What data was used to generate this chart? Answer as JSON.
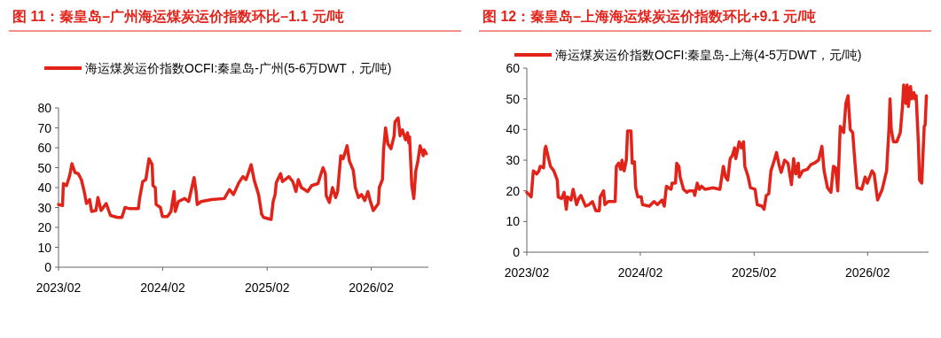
{
  "chart_data": [
    {
      "type": "line",
      "title": "图 11：秦皇岛–广州海运煤炭运价指数环比–1.1 元/吨",
      "legend": "top",
      "x": [
        "2023-02-01",
        "2023-02-15",
        "2023-02-18",
        "2023-03-01",
        "2023-03-12",
        "2023-03-20",
        "2023-03-31",
        "2023-04-11",
        "2023-04-22",
        "2023-05-02",
        "2023-05-10",
        "2023-05-21",
        "2023-05-28",
        "2023-06-12",
        "2023-06-19",
        "2023-06-30",
        "2023-07-18",
        "2023-08-02",
        "2023-08-27",
        "2023-09-11",
        "2023-09-22",
        "2023-10-06",
        "2023-11-08",
        "2023-11-12",
        "2023-11-23",
        "2023-12-04",
        "2023-12-15",
        "2023-12-26",
        "2023-12-29",
        "2024-01-06",
        "2024-01-09",
        "2024-01-24",
        "2024-01-31",
        "2024-02-18",
        "2024-03-01",
        "2024-03-12",
        "2024-03-16",
        "2024-03-27",
        "2024-04-18",
        "2024-05-02",
        "2024-05-21",
        "2024-05-28",
        "2024-06-01",
        "2024-06-15",
        "2024-07-22",
        "2024-09-04",
        "2024-09-22",
        "2024-10-06",
        "2024-10-25",
        "2024-11-08",
        "2024-11-19",
        "2024-11-30",
        "2024-12-07",
        "2024-12-18",
        "2025-01-02",
        "2025-01-13",
        "2025-01-20",
        "2025-02-15",
        "2025-02-22",
        "2025-03-01",
        "2025-03-05",
        "2025-03-20",
        "2025-03-27",
        "2025-04-18",
        "2025-05-02",
        "2025-05-13",
        "2025-05-21",
        "2025-06-01",
        "2025-06-23",
        "2025-07-07",
        "2025-07-29",
        "2025-08-09",
        "2025-08-16",
        "2025-08-24",
        "2025-08-27",
        "2025-09-07",
        "2025-09-18",
        "2025-09-29",
        "2025-10-06",
        "2025-10-17",
        "2025-10-25",
        "2025-11-01",
        "2025-11-08",
        "2025-11-16",
        "2025-11-30",
        "2025-12-07",
        "2025-12-18",
        "2025-12-29",
        "2026-01-09",
        "2026-01-20",
        "2026-01-28",
        "2026-02-08",
        "2026-02-26",
        "2026-03-01",
        "2026-03-12",
        "2026-03-16",
        "2026-03-23",
        "2026-03-31",
        "2026-04-11",
        "2026-04-22",
        "2026-04-25",
        "2026-05-06",
        "2026-05-13",
        "2026-05-21",
        "2026-06-01",
        "2026-06-08",
        "2026-06-12",
        "2026-06-15",
        "2026-06-23",
        "2026-06-30",
        "2026-07-07",
        "2026-07-14",
        "2026-07-22",
        "2026-08-02",
        "2026-08-05",
        "2026-08-13"
      ],
      "series": [
        {
          "name": "海运煤炭运价指数OCFI:秦皇岛-广州(5-6万DWT，元/吨)",
          "color": "#e2231a",
          "values": [
            31.5,
            31,
            42,
            41,
            46,
            52,
            47.5,
            47,
            44,
            38,
            32,
            34,
            28,
            28.5,
            35,
            28.5,
            32,
            26,
            25,
            25,
            30,
            29.5,
            29.5,
            34.5,
            43,
            44,
            54.5,
            51.5,
            41,
            40,
            31.5,
            30,
            25.5,
            25.5,
            28,
            38,
            28,
            33,
            34.5,
            33,
            45,
            38,
            31.5,
            33,
            34,
            34.5,
            39,
            36.5,
            42.5,
            45.5,
            44,
            48.5,
            51.5,
            43.5,
            36.5,
            26.5,
            25,
            24,
            33,
            36.5,
            42.5,
            47,
            43,
            45.5,
            43,
            38,
            44,
            40,
            38,
            41,
            42,
            47,
            50,
            47,
            36,
            32.5,
            40,
            35,
            38,
            56,
            54.5,
            57.5,
            61,
            53.5,
            48.5,
            40,
            35,
            36.5,
            33.5,
            38,
            33.5,
            28.5,
            32,
            40,
            44,
            59,
            70,
            62,
            59.5,
            66,
            73,
            75,
            66,
            69,
            64,
            67.5,
            62.5,
            65.5,
            41,
            34.5,
            48.5,
            53,
            61,
            56,
            59,
            57
          ]
        }
      ],
      "xlim": [
        "2023-02-01",
        "2026-08-20"
      ],
      "ylim": [
        0,
        80
      ],
      "xticks": [
        {
          "value": "2023-02",
          "label": "2023/02"
        },
        {
          "value": "2024-02",
          "label": "2024/02"
        },
        {
          "value": "2025-02",
          "label": "2025/02"
        },
        {
          "value": "2026-02",
          "label": "2026/02"
        }
      ],
      "yticks": [
        0,
        10,
        20,
        30,
        40,
        50,
        60,
        70,
        80
      ]
    },
    {
      "type": "line",
      "title": "图 12：秦皇岛–上海海运煤炭运价指数环比+9.1 元/吨",
      "legend": "top",
      "x": [
        "2023-02-01",
        "2023-02-15",
        "2023-02-22",
        "2023-03-05",
        "2023-03-12",
        "2023-03-16",
        "2023-03-27",
        "2023-03-31",
        "2023-04-03",
        "2023-04-11",
        "2023-04-18",
        "2023-04-29",
        "2023-05-10",
        "2023-05-13",
        "2023-05-24",
        "2023-06-01",
        "2023-06-08",
        "2023-06-12",
        "2023-06-23",
        "2023-06-30",
        "2023-07-11",
        "2023-07-18",
        "2023-07-25",
        "2023-08-09",
        "2023-08-20",
        "2023-08-31",
        "2023-09-11",
        "2023-09-22",
        "2023-09-25",
        "2023-10-06",
        "2023-10-10",
        "2023-10-21",
        "2023-11-12",
        "2023-11-16",
        "2023-11-23",
        "2023-11-30",
        "2023-12-04",
        "2023-12-11",
        "2023-12-18",
        "2023-12-22",
        "2024-01-02",
        "2024-01-06",
        "2024-01-13",
        "2024-01-17",
        "2024-01-24",
        "2024-02-04",
        "2024-02-08",
        "2024-03-01",
        "2024-03-16",
        "2024-03-27",
        "2024-04-11",
        "2024-04-18",
        "2024-04-25",
        "2024-05-02",
        "2024-05-10",
        "2024-05-13",
        "2024-05-24",
        "2024-05-28",
        "2024-06-04",
        "2024-06-08",
        "2024-06-19",
        "2024-06-30",
        "2024-07-07",
        "2024-07-22",
        "2024-07-25",
        "2024-08-02",
        "2024-08-09",
        "2024-08-16",
        "2024-08-27",
        "2024-09-22",
        "2024-10-14",
        "2024-10-25",
        "2024-11-01",
        "2024-11-08",
        "2024-11-16",
        "2024-11-23",
        "2024-11-30",
        "2024-12-04",
        "2024-12-15",
        "2024-12-22",
        "2024-12-29",
        "2025-01-02",
        "2025-01-13",
        "2025-01-20",
        "2025-02-04",
        "2025-02-11",
        "2025-02-26",
        "2025-03-05",
        "2025-03-12",
        "2025-03-20",
        "2025-03-27",
        "2025-04-07",
        "2025-04-14",
        "2025-04-22",
        "2025-04-29",
        "2025-05-10",
        "2025-05-21",
        "2025-06-01",
        "2025-06-08",
        "2025-06-15",
        "2025-06-23",
        "2025-06-26",
        "2025-07-07",
        "2025-07-22",
        "2025-08-02",
        "2025-08-13",
        "2025-08-27",
        "2025-09-07",
        "2025-09-14",
        "2025-09-25",
        "2025-10-06",
        "2025-10-14",
        "2025-10-21",
        "2025-10-28",
        "2025-11-05",
        "2025-11-16",
        "2025-11-23",
        "2025-11-30",
        "2025-12-07",
        "2025-12-15",
        "2025-12-22",
        "2025-12-29",
        "2026-01-13",
        "2026-01-24",
        "2026-01-31",
        "2026-02-15",
        "2026-02-22",
        "2026-03-05",
        "2026-03-20",
        "2026-04-03",
        "2026-04-11",
        "2026-04-14",
        "2026-04-18",
        "2026-04-25",
        "2026-05-06",
        "2026-05-17",
        "2026-05-24",
        "2026-05-28",
        "2026-06-04",
        "2026-06-08",
        "2026-06-12",
        "2026-06-19",
        "2026-06-23",
        "2026-06-30",
        "2026-07-03",
        "2026-07-07",
        "2026-07-14",
        "2026-07-18",
        "2026-07-25",
        "2026-08-02",
        "2026-08-05",
        "2026-08-09"
      ],
      "series": [
        {
          "name": "海运煤炭运价指数OCFI:秦皇岛-上海(4-5万DWT，元/吨)",
          "color": "#e2231a",
          "values": [
            19.5,
            18,
            26.5,
            25.5,
            26.5,
            28,
            27.5,
            33.5,
            34.5,
            31,
            28,
            26.5,
            23.5,
            18,
            17.5,
            19.5,
            14,
            18,
            17,
            20.5,
            15.5,
            17.5,
            18.5,
            15,
            15.5,
            16.5,
            13.5,
            13.5,
            18,
            20,
            15.5,
            16.5,
            16.5,
            28,
            29,
            27,
            30,
            26.5,
            30,
            39.5,
            39.5,
            29,
            29.5,
            21,
            18,
            18,
            15.5,
            15,
            16.5,
            15.5,
            17,
            15,
            21.5,
            21,
            20.5,
            22.5,
            22.5,
            29,
            28,
            24.5,
            20.5,
            19.5,
            20,
            20,
            18.5,
            22.5,
            20.5,
            21.5,
            20.5,
            21,
            20.5,
            28,
            24.5,
            23.5,
            30.5,
            31.5,
            34,
            30.5,
            36,
            34,
            36,
            28,
            24.5,
            21,
            20.5,
            15.5,
            15,
            14,
            18.5,
            19,
            26.5,
            30,
            32.5,
            28.5,
            26,
            30,
            29,
            22,
            30.5,
            25.5,
            29,
            24.5,
            26.5,
            27,
            28.5,
            29,
            30,
            34.5,
            26.5,
            21,
            19.5,
            28,
            27.5,
            20,
            41,
            39,
            48.5,
            51,
            40,
            39,
            29.5,
            21,
            20.5,
            24.5,
            22.5,
            26.5,
            25.5,
            17,
            20.5,
            26.5,
            41,
            50,
            40,
            36,
            36,
            39,
            47.5,
            54.5,
            48.5,
            54.5,
            47.5,
            54,
            50,
            52,
            50,
            51,
            36,
            23.5,
            22.5,
            41,
            41.5,
            51
          ]
        }
      ],
      "xlim": [
        "2023-02-01",
        "2026-08-16"
      ],
      "ylim": [
        0,
        60
      ],
      "xticks": [
        {
          "value": "2023-02",
          "label": "2023/02"
        },
        {
          "value": "2024-02",
          "label": "2024/02"
        },
        {
          "value": "2025-02",
          "label": "2025/02"
        },
        {
          "value": "2026-02",
          "label": "2026/02"
        }
      ],
      "yticks": [
        0,
        10,
        20,
        30,
        40,
        50,
        60
      ]
    }
  ]
}
